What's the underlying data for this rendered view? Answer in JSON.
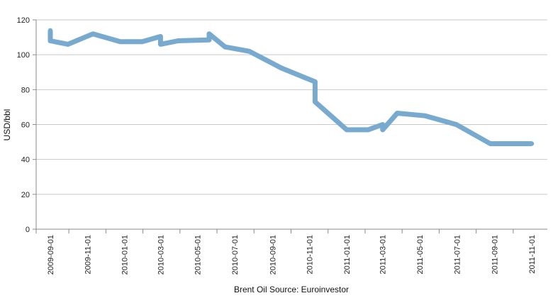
{
  "chart_data": {
    "type": "line",
    "title": "",
    "xlabel": "Brent Oil Source: Euroinvestor",
    "ylabel": "USD/bbl",
    "ylim": [
      0,
      120
    ],
    "yticks": [
      0,
      20,
      40,
      60,
      80,
      100,
      120
    ],
    "x_tick_labels": [
      "2009-09-01",
      "2009-11-01",
      "2010-01-01",
      "2010-03-01",
      "2010-05-01",
      "2010-07-01",
      "2010-09-01",
      "2010-11-01",
      "2011-01-01",
      "2011-03-01",
      "2011-05-01",
      "2011-07-01",
      "2011-09-01",
      "2011-11-01"
    ],
    "grid": "horizontal",
    "legend": "none",
    "series": [
      {
        "color": "#78aad0",
        "points": [
          [
            "2009-09-01",
            114
          ],
          [
            "2009-09-01",
            108
          ],
          [
            "2009-09-30",
            106
          ],
          [
            "2009-11-10",
            112
          ],
          [
            "2009-12-25",
            107.5
          ],
          [
            "2010-01-30",
            107.5
          ],
          [
            "2010-03-01",
            110.5
          ],
          [
            "2010-03-01",
            106
          ],
          [
            "2010-03-30",
            108
          ],
          [
            "2010-05-20",
            108.5
          ],
          [
            "2010-05-20",
            112
          ],
          [
            "2010-06-15",
            104.5
          ],
          [
            "2010-07-25",
            102
          ],
          [
            "2010-09-15",
            92.5
          ],
          [
            "2010-11-10",
            84.5
          ],
          [
            "2010-11-10",
            73
          ],
          [
            "2011-01-01",
            57
          ],
          [
            "2011-02-05",
            57
          ],
          [
            "2011-03-01",
            60
          ],
          [
            "2011-03-01",
            57
          ],
          [
            "2011-03-25",
            66.5
          ],
          [
            "2011-05-10",
            65
          ],
          [
            "2011-06-30",
            60
          ],
          [
            "2011-08-25",
            49
          ],
          [
            "2011-11-01",
            49
          ]
        ]
      }
    ]
  }
}
